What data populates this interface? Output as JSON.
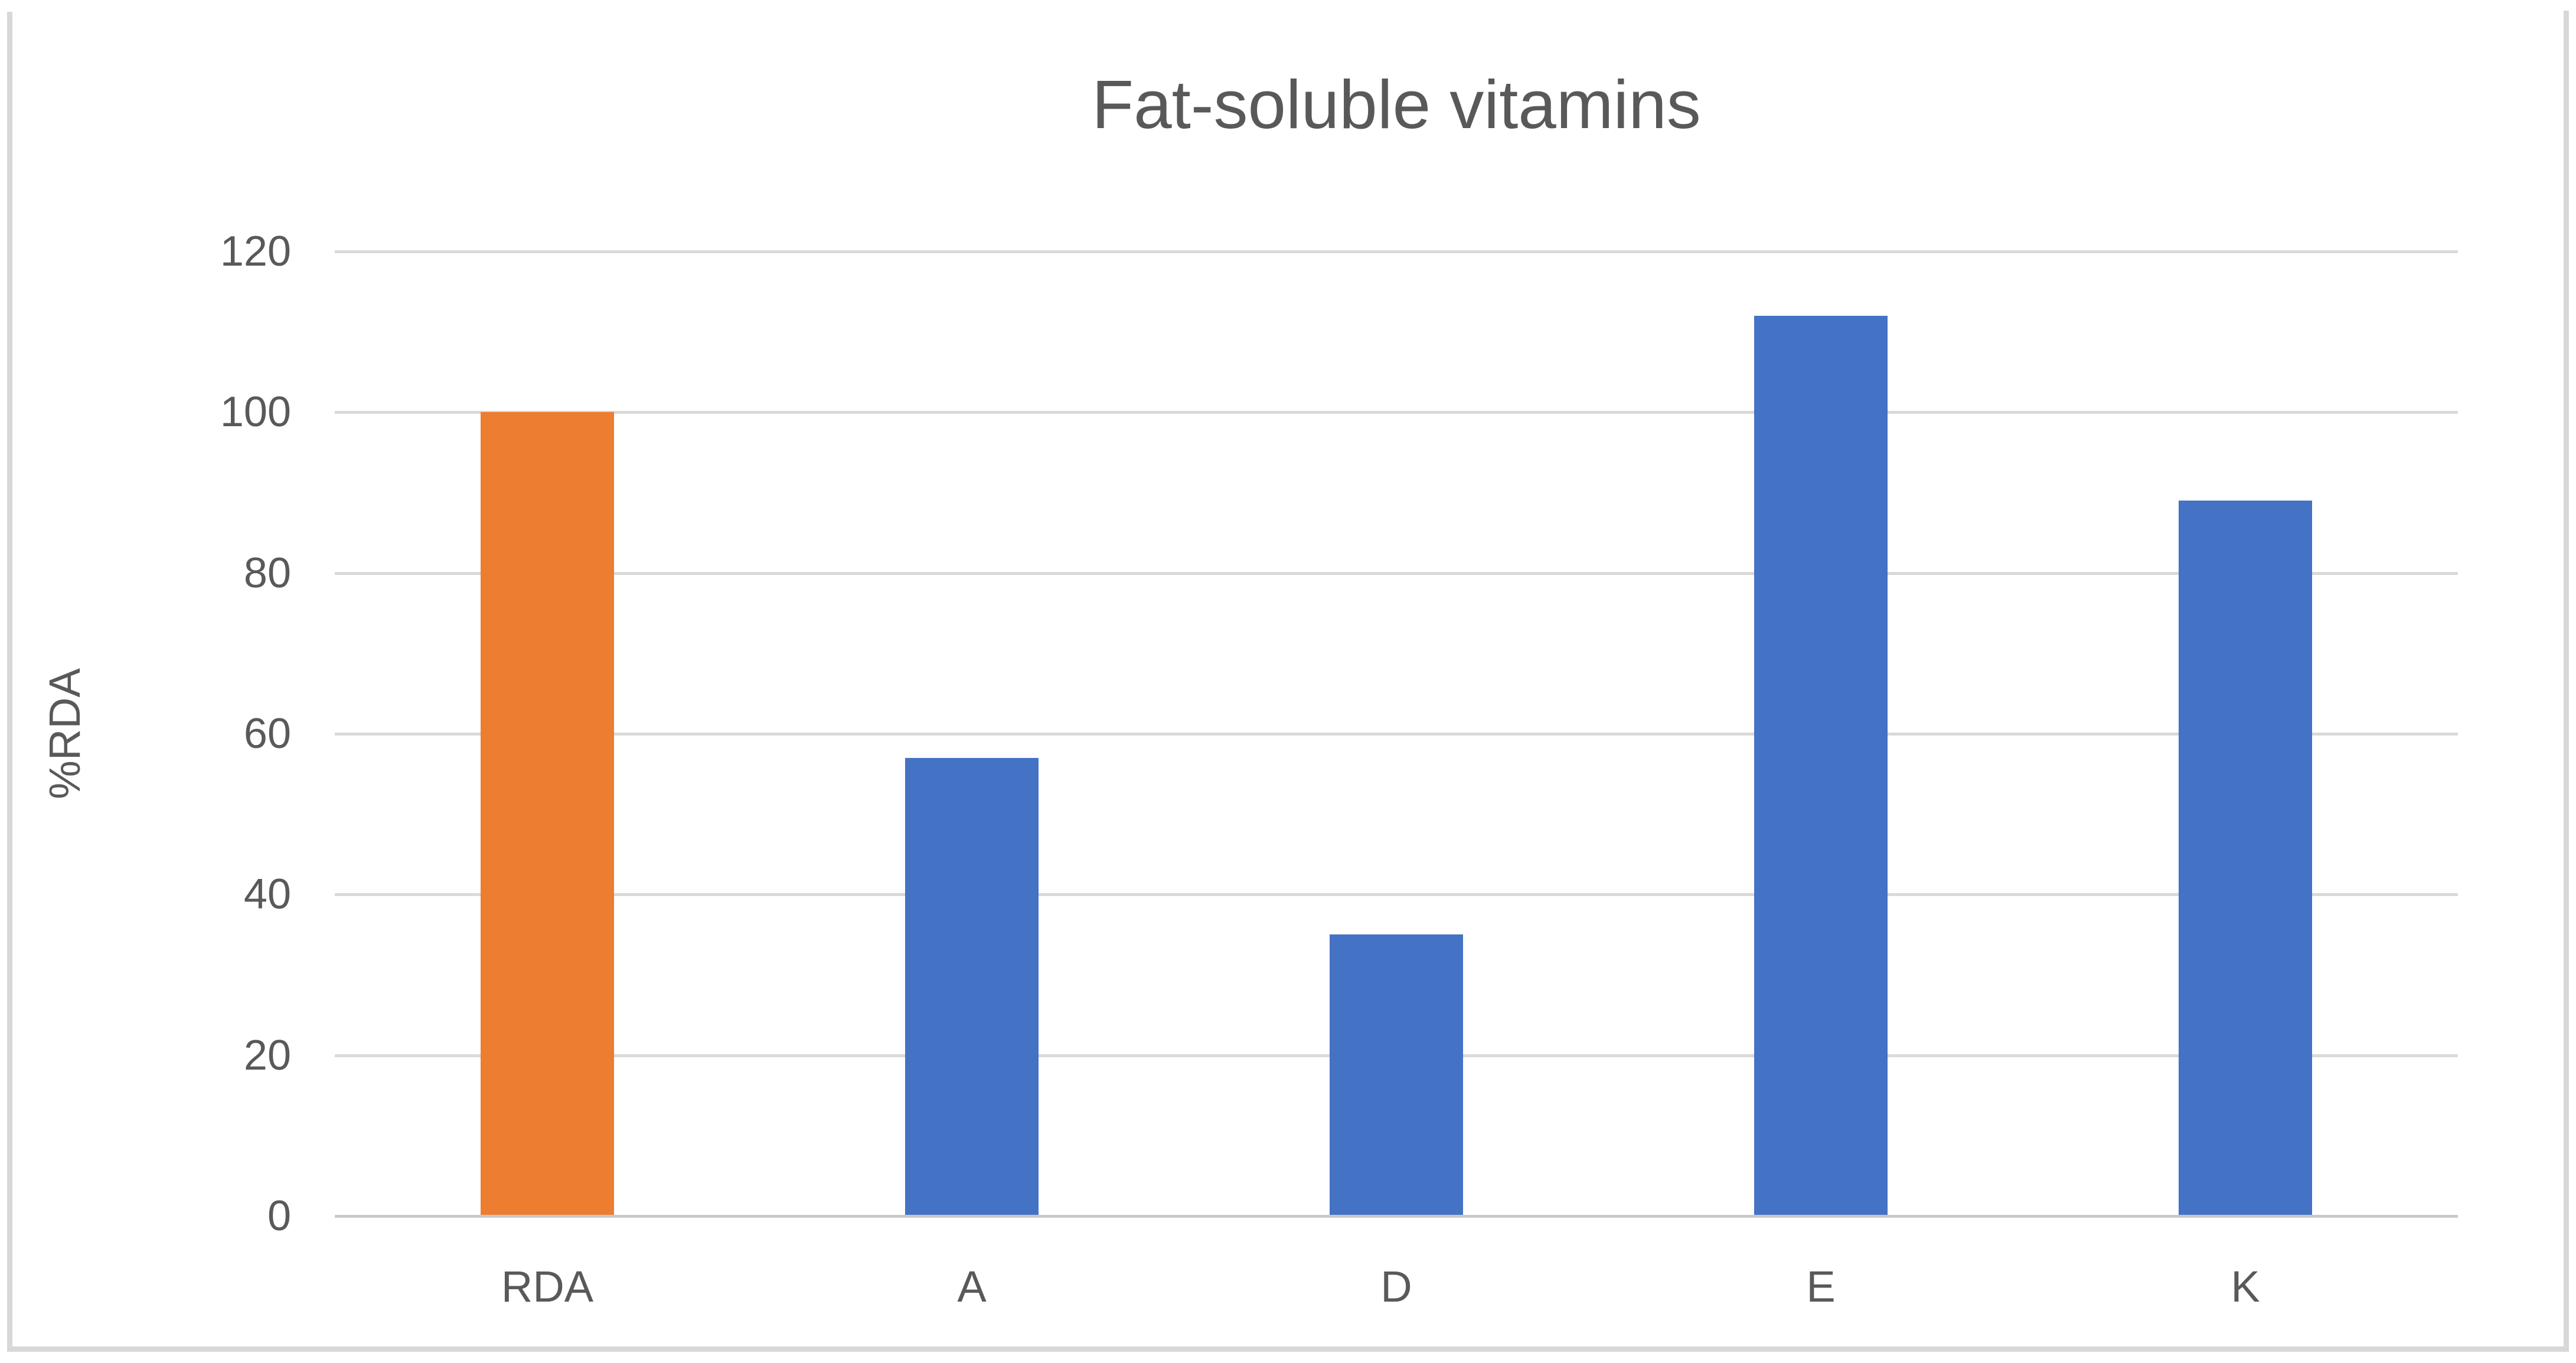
{
  "chart": {
    "title": "Fat-soluble vitamins",
    "ylabel": "%RDA"
  },
  "chart_data": {
    "type": "bar",
    "title": "Fat-soluble vitamins",
    "xlabel": "",
    "ylabel": "%RDA",
    "categories": [
      "RDA",
      "A",
      "D",
      "E",
      "K"
    ],
    "values": [
      100,
      57,
      35,
      112,
      89
    ],
    "bar_colors": [
      "#ED7D31",
      "#4472C4",
      "#4472C4",
      "#4472C4",
      "#4472C4"
    ],
    "ylim": [
      0,
      120
    ],
    "yticks": [
      0,
      20,
      40,
      60,
      80,
      100,
      120
    ],
    "grid": true,
    "legend": false,
    "colors": {
      "accent_orange": "#ED7D31",
      "accent_blue": "#4472C4",
      "gridline": "#D9D9D9",
      "axis_line": "#C9C9C9",
      "text": "#595959",
      "frame_border": "#D8D8D8",
      "background": "#FFFFFF"
    }
  }
}
